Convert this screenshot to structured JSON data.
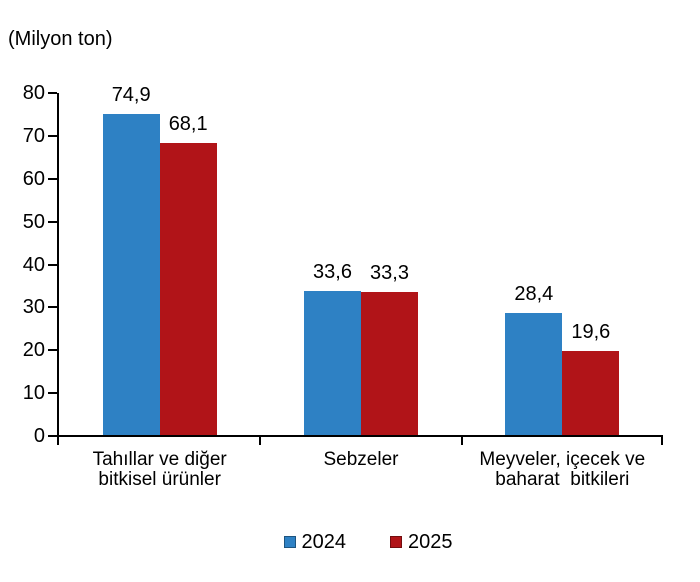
{
  "chart_data": {
    "type": "bar",
    "title": "",
    "ylabel": "(Milyon ton)",
    "xlabel": "",
    "categories": [
      "Tahıllar ve diğer\nbitkisel ürünler",
      "Sebzeler",
      "Meyveler, içecek ve\nbaharat  bitkileri"
    ],
    "series": [
      {
        "name": "2024",
        "color": "#2E81C4",
        "values": [
          74.9,
          33.6,
          28.4
        ],
        "labels": [
          "74,9",
          "33,6",
          "28,4"
        ]
      },
      {
        "name": "2025",
        "color": "#B11418",
        "values": [
          68.1,
          33.3,
          19.6
        ],
        "labels": [
          "68,1",
          "33,3",
          "19,6"
        ]
      }
    ],
    "ylim": [
      0,
      80
    ],
    "yticks": [
      0,
      10,
      20,
      30,
      40,
      50,
      60,
      70,
      80
    ],
    "grid": false,
    "legend_position": "bottom",
    "axis_color": "#000000",
    "text_color": "#000000",
    "background_color": "#FFFFFF"
  }
}
